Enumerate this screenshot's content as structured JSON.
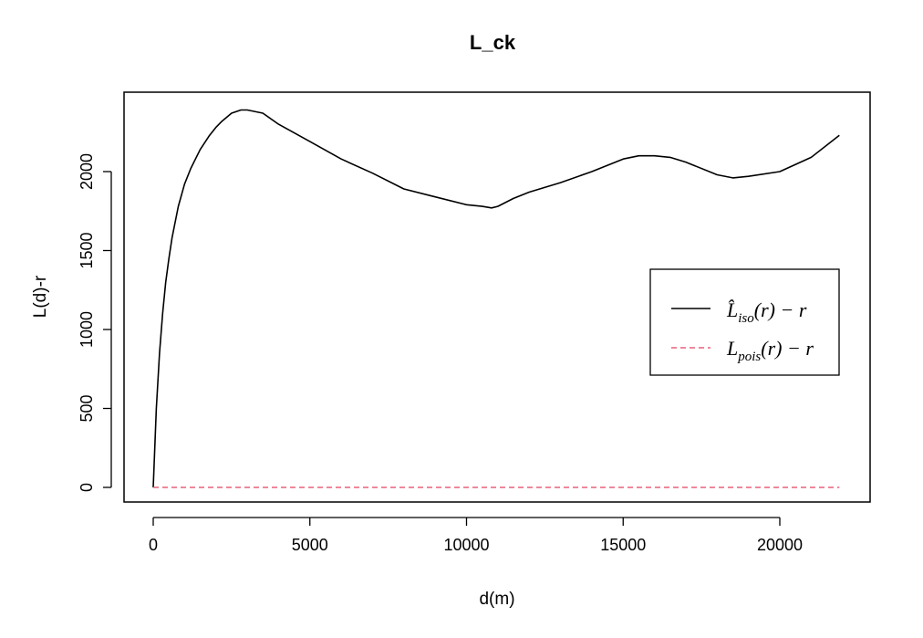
{
  "chart_data": {
    "type": "line",
    "title": "L_ck",
    "xlabel": "d(m)",
    "ylabel": "L(d)-r",
    "xlim": [
      0,
      22000
    ],
    "ylim": [
      0,
      2400
    ],
    "x_ticks": [
      "0",
      "5000",
      "10000",
      "15000",
      "20000"
    ],
    "y_ticks": [
      "0",
      "500",
      "1000",
      "1500",
      "2000"
    ],
    "grid": false,
    "legend_position": "right",
    "series": [
      {
        "name": "L̂iso(r) − r",
        "color": "#000000",
        "style": "solid",
        "x": [
          0,
          50,
          100,
          200,
          300,
          400,
          500,
          600,
          800,
          1000,
          1200,
          1500,
          1800,
          2000,
          2200,
          2500,
          2800,
          3000,
          3500,
          4000,
          5000,
          6000,
          7000,
          8000,
          9000,
          10000,
          10500,
          10800,
          11000,
          11500,
          12000,
          13000,
          14000,
          15000,
          15500,
          16000,
          16500,
          17000,
          18000,
          18500,
          19000,
          20000,
          21000,
          21900
        ],
        "y": [
          0,
          250,
          500,
          850,
          1100,
          1300,
          1450,
          1580,
          1780,
          1920,
          2020,
          2140,
          2230,
          2280,
          2320,
          2370,
          2390,
          2390,
          2370,
          2300,
          2190,
          2080,
          1990,
          1890,
          1840,
          1790,
          1780,
          1770,
          1780,
          1830,
          1870,
          1930,
          2000,
          2080,
          2100,
          2100,
          2090,
          2060,
          1980,
          1960,
          1970,
          2000,
          2090,
          2230
        ]
      },
      {
        "name": "Lpois(r) − r",
        "color": "#e8607a",
        "style": "dashed",
        "x": [
          0,
          21900
        ],
        "y": [
          0,
          0
        ]
      }
    ]
  },
  "legend": {
    "entries": [
      {
        "main": "L̂",
        "sub": "iso",
        "rest": "(r) − r"
      },
      {
        "main": "L",
        "sub": "pois",
        "rest": "(r) − r"
      }
    ]
  }
}
